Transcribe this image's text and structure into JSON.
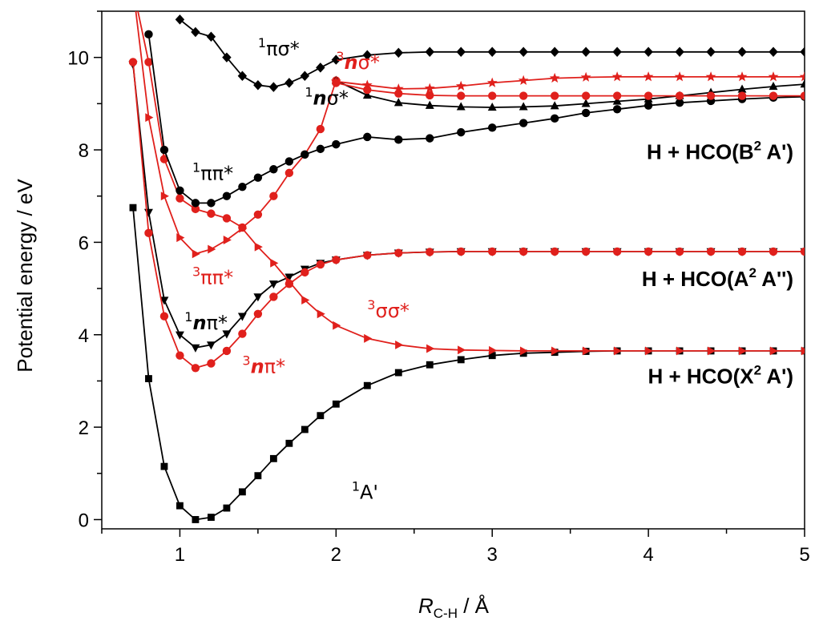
{
  "chart_data": {
    "type": "line",
    "xlabel": {
      "main": "R",
      "sub": "C-H",
      "unit": " / Å"
    },
    "ylabel": "Potential energy / eV",
    "xlim": [
      0.5,
      5.0
    ],
    "ylim": [
      -0.2,
      11.0
    ],
    "xticks": [
      "1",
      "2",
      "3",
      "4",
      "5"
    ],
    "yticks": [
      "0",
      "2",
      "4",
      "6",
      "8",
      "10"
    ],
    "grid": false,
    "colors": {
      "singlet": "#000000",
      "triplet": "#e0201c"
    },
    "series": [
      {
        "name": "¹A'",
        "color": "#000000",
        "marker": "square",
        "x": [
          0.7,
          0.8,
          0.9,
          1.0,
          1.1,
          1.2,
          1.3,
          1.4,
          1.5,
          1.6,
          1.7,
          1.8,
          1.9,
          2.0,
          2.2,
          2.4,
          2.6,
          2.8,
          3.0,
          3.2,
          3.4,
          3.6,
          3.8,
          4.0,
          4.2,
          4.4,
          4.6,
          4.8,
          5.0
        ],
        "y": [
          6.75,
          3.05,
          1.15,
          0.3,
          0.0,
          0.05,
          0.25,
          0.6,
          0.95,
          1.32,
          1.65,
          1.95,
          2.25,
          2.5,
          2.9,
          3.18,
          3.35,
          3.46,
          3.55,
          3.6,
          3.62,
          3.64,
          3.65,
          3.65,
          3.65,
          3.65,
          3.65,
          3.65,
          3.65
        ]
      },
      {
        "name": "¹nπ*",
        "color": "#000000",
        "marker": "triangle-down",
        "x": [
          0.7,
          0.8,
          0.9,
          1.0,
          1.1,
          1.2,
          1.3,
          1.4,
          1.5,
          1.6,
          1.7,
          1.8,
          1.9,
          2.0,
          2.2,
          2.4,
          2.6,
          2.8,
          3.0,
          3.2,
          3.4,
          3.6,
          3.8,
          4.0,
          4.2,
          4.4,
          4.6,
          4.8,
          5.0
        ],
        "y": [
          9.85,
          6.65,
          4.75,
          4.0,
          3.72,
          3.78,
          4.02,
          4.4,
          4.82,
          5.1,
          5.25,
          5.42,
          5.55,
          5.62,
          5.72,
          5.77,
          5.79,
          5.8,
          5.8,
          5.8,
          5.8,
          5.8,
          5.8,
          5.8,
          5.8,
          5.8,
          5.8,
          5.8,
          5.8
        ]
      },
      {
        "name": "³nπ*",
        "color": "#e0201c",
        "marker": "circle",
        "x": [
          0.7,
          0.8,
          0.9,
          1.0,
          1.1,
          1.2,
          1.3,
          1.4,
          1.5,
          1.6,
          1.7,
          1.8,
          1.9,
          2.0,
          2.2,
          2.4,
          2.6,
          2.8,
          3.0,
          3.2,
          3.4,
          3.6,
          3.8,
          4.0,
          4.2,
          4.4,
          4.6,
          4.8,
          5.0
        ],
        "y": [
          9.9,
          6.2,
          4.4,
          3.55,
          3.28,
          3.38,
          3.65,
          4.02,
          4.45,
          4.82,
          5.1,
          5.35,
          5.52,
          5.62,
          5.72,
          5.77,
          5.79,
          5.8,
          5.8,
          5.8,
          5.8,
          5.8,
          5.8,
          5.8,
          5.8,
          5.8,
          5.8,
          5.8,
          5.8
        ]
      },
      {
        "name": "³σσ*",
        "color": "#e0201c",
        "marker": "triangle-right",
        "x": [
          0.7,
          0.8,
          0.9,
          1.0,
          1.1,
          1.2,
          1.3,
          1.4,
          1.5,
          1.6,
          1.7,
          1.8,
          1.9,
          2.0,
          2.2,
          2.4,
          2.6,
          2.8,
          3.0,
          3.2,
          3.4,
          3.6,
          3.8,
          4.0,
          4.2,
          4.4,
          4.6,
          4.8,
          5.0
        ],
        "y": [
          11.5,
          8.7,
          7.0,
          6.1,
          5.75,
          5.85,
          6.05,
          6.3,
          5.9,
          5.55,
          5.15,
          4.75,
          4.45,
          4.2,
          3.92,
          3.78,
          3.7,
          3.67,
          3.66,
          3.65,
          3.65,
          3.65,
          3.65,
          3.65,
          3.65,
          3.65,
          3.65,
          3.65,
          3.65
        ]
      },
      {
        "name": "³ππ*",
        "color": "#e0201c",
        "marker": "circle",
        "x": [
          0.7,
          0.8,
          0.9,
          1.0,
          1.1,
          1.2,
          1.3,
          1.4,
          1.5,
          1.6,
          1.7,
          1.8,
          1.9,
          2.0
        ],
        "y": [
          11.5,
          9.9,
          7.8,
          6.95,
          6.72,
          6.62,
          6.52,
          6.32,
          6.6,
          7.0,
          7.5,
          7.9,
          8.45,
          9.5
        ]
      },
      {
        "name": "¹ππ*",
        "color": "#000000",
        "marker": "circle",
        "x": [
          0.8,
          0.9,
          1.0,
          1.1,
          1.2,
          1.3,
          1.4,
          1.5,
          1.6,
          1.7,
          1.8,
          1.9,
          2.0,
          2.2,
          2.4,
          2.6,
          2.8,
          3.0,
          3.2,
          3.4,
          3.6,
          3.8,
          4.0,
          4.2,
          4.4,
          4.6,
          4.8,
          5.0
        ],
        "y": [
          10.5,
          8.0,
          7.12,
          6.85,
          6.85,
          7.0,
          7.2,
          7.4,
          7.58,
          7.75,
          7.9,
          8.02,
          8.12,
          8.28,
          8.22,
          8.25,
          8.38,
          8.48,
          8.58,
          8.68,
          8.8,
          8.88,
          8.96,
          9.02,
          9.06,
          9.1,
          9.13,
          9.15
        ]
      },
      {
        "name": "¹πσ*",
        "color": "#000000",
        "marker": "diamond",
        "x": [
          1.0,
          1.1,
          1.2,
          1.3,
          1.4,
          1.5,
          1.6,
          1.7,
          1.8,
          1.9,
          2.0,
          2.2,
          2.4,
          2.6,
          2.8,
          3.0,
          3.2,
          3.4,
          3.6,
          3.8,
          4.0,
          4.2,
          4.4,
          4.6,
          4.8,
          5.0
        ],
        "y": [
          10.82,
          10.55,
          10.45,
          10.0,
          9.6,
          9.4,
          9.36,
          9.45,
          9.6,
          9.78,
          9.95,
          10.05,
          10.1,
          10.12,
          10.12,
          10.12,
          10.12,
          10.12,
          10.12,
          10.12,
          10.12,
          10.12,
          10.12,
          10.12,
          10.12,
          10.12
        ]
      },
      {
        "name": "¹nσ*",
        "color": "#000000",
        "marker": "triangle-up",
        "x": [
          2.0,
          2.2,
          2.4,
          2.6,
          2.8,
          3.0,
          3.2,
          3.4,
          3.6,
          3.8,
          4.0,
          4.2,
          4.4,
          4.6,
          4.8,
          5.0
        ],
        "y": [
          9.5,
          9.18,
          9.02,
          8.96,
          8.93,
          8.92,
          8.93,
          8.95,
          9.0,
          9.05,
          9.1,
          9.17,
          9.24,
          9.31,
          9.37,
          9.42
        ]
      },
      {
        "name": "³nσ*",
        "color": "#e0201c",
        "marker": "circle",
        "x": [
          2.0,
          2.2,
          2.4,
          2.6,
          2.8,
          3.0,
          3.2,
          3.4,
          3.6,
          3.8,
          4.0,
          4.2,
          4.4,
          4.6,
          4.8,
          5.0
        ],
        "y": [
          9.45,
          9.3,
          9.22,
          9.18,
          9.17,
          9.17,
          9.17,
          9.17,
          9.17,
          9.17,
          9.17,
          9.17,
          9.17,
          9.17,
          9.17,
          9.17
        ]
      },
      {
        "name": "³nσ*",
        "color": "#e0201c",
        "marker": "star",
        "x": [
          2.0,
          2.2,
          2.4,
          2.6,
          2.8,
          3.0,
          3.2,
          3.4,
          3.6,
          3.8,
          4.0,
          4.2,
          4.4,
          4.6,
          4.8,
          5.0
        ],
        "y": [
          9.48,
          9.4,
          9.32,
          9.33,
          9.38,
          9.45,
          9.5,
          9.55,
          9.57,
          9.58,
          9.58,
          9.58,
          9.58,
          9.58,
          9.58,
          9.58
        ]
      }
    ],
    "annotations": [
      {
        "id": "pisigma1",
        "sup": "1",
        "body": "πσ*",
        "italic": "",
        "color": "#000000",
        "x": 1.5,
        "y": 10.05
      },
      {
        "id": "nsigma1",
        "sup": "1",
        "body": "σ*",
        "italic": "n",
        "color": "#000000",
        "x": 1.8,
        "y": 8.98
      },
      {
        "id": "nsigma3",
        "sup": "3",
        "body": "σ*",
        "italic": "n",
        "color": "#e0201c",
        "x": 2.0,
        "y": 9.75
      },
      {
        "id": "pipi1",
        "sup": "1",
        "body": "ππ*",
        "italic": "",
        "color": "#000000",
        "x": 1.08,
        "y": 7.35
      },
      {
        "id": "pipi3",
        "sup": "3",
        "body": "ππ*",
        "italic": "",
        "color": "#e0201c",
        "x": 1.08,
        "y": 5.1
      },
      {
        "id": "npi1",
        "sup": "1",
        "body": "π*",
        "italic": "n",
        "color": "#000000",
        "x": 1.03,
        "y": 4.12
      },
      {
        "id": "npi3",
        "sup": "3",
        "body": "π*",
        "italic": "n",
        "color": "#e0201c",
        "x": 1.4,
        "y": 3.17
      },
      {
        "id": "sigmasigma3",
        "sup": "3",
        "body": "σσ*",
        "italic": "",
        "color": "#e0201c",
        "x": 2.2,
        "y": 4.38
      },
      {
        "id": "ground1",
        "sup": "1",
        "body": "A'",
        "italic": "",
        "color": "#000000",
        "x": 2.1,
        "y": 0.45
      }
    ],
    "asymptote_labels": [
      {
        "id": "b2",
        "text": "H + HCO(B",
        "sup": "2",
        "after": " A')",
        "y": 7.8
      },
      {
        "id": "a2",
        "text": "H + HCO(A",
        "sup": "2",
        "after": " A'')",
        "y": 5.05
      },
      {
        "id": "x2",
        "text": "H + HCO(X",
        "sup": "2",
        "after": " A')",
        "y": 2.95
      }
    ]
  }
}
